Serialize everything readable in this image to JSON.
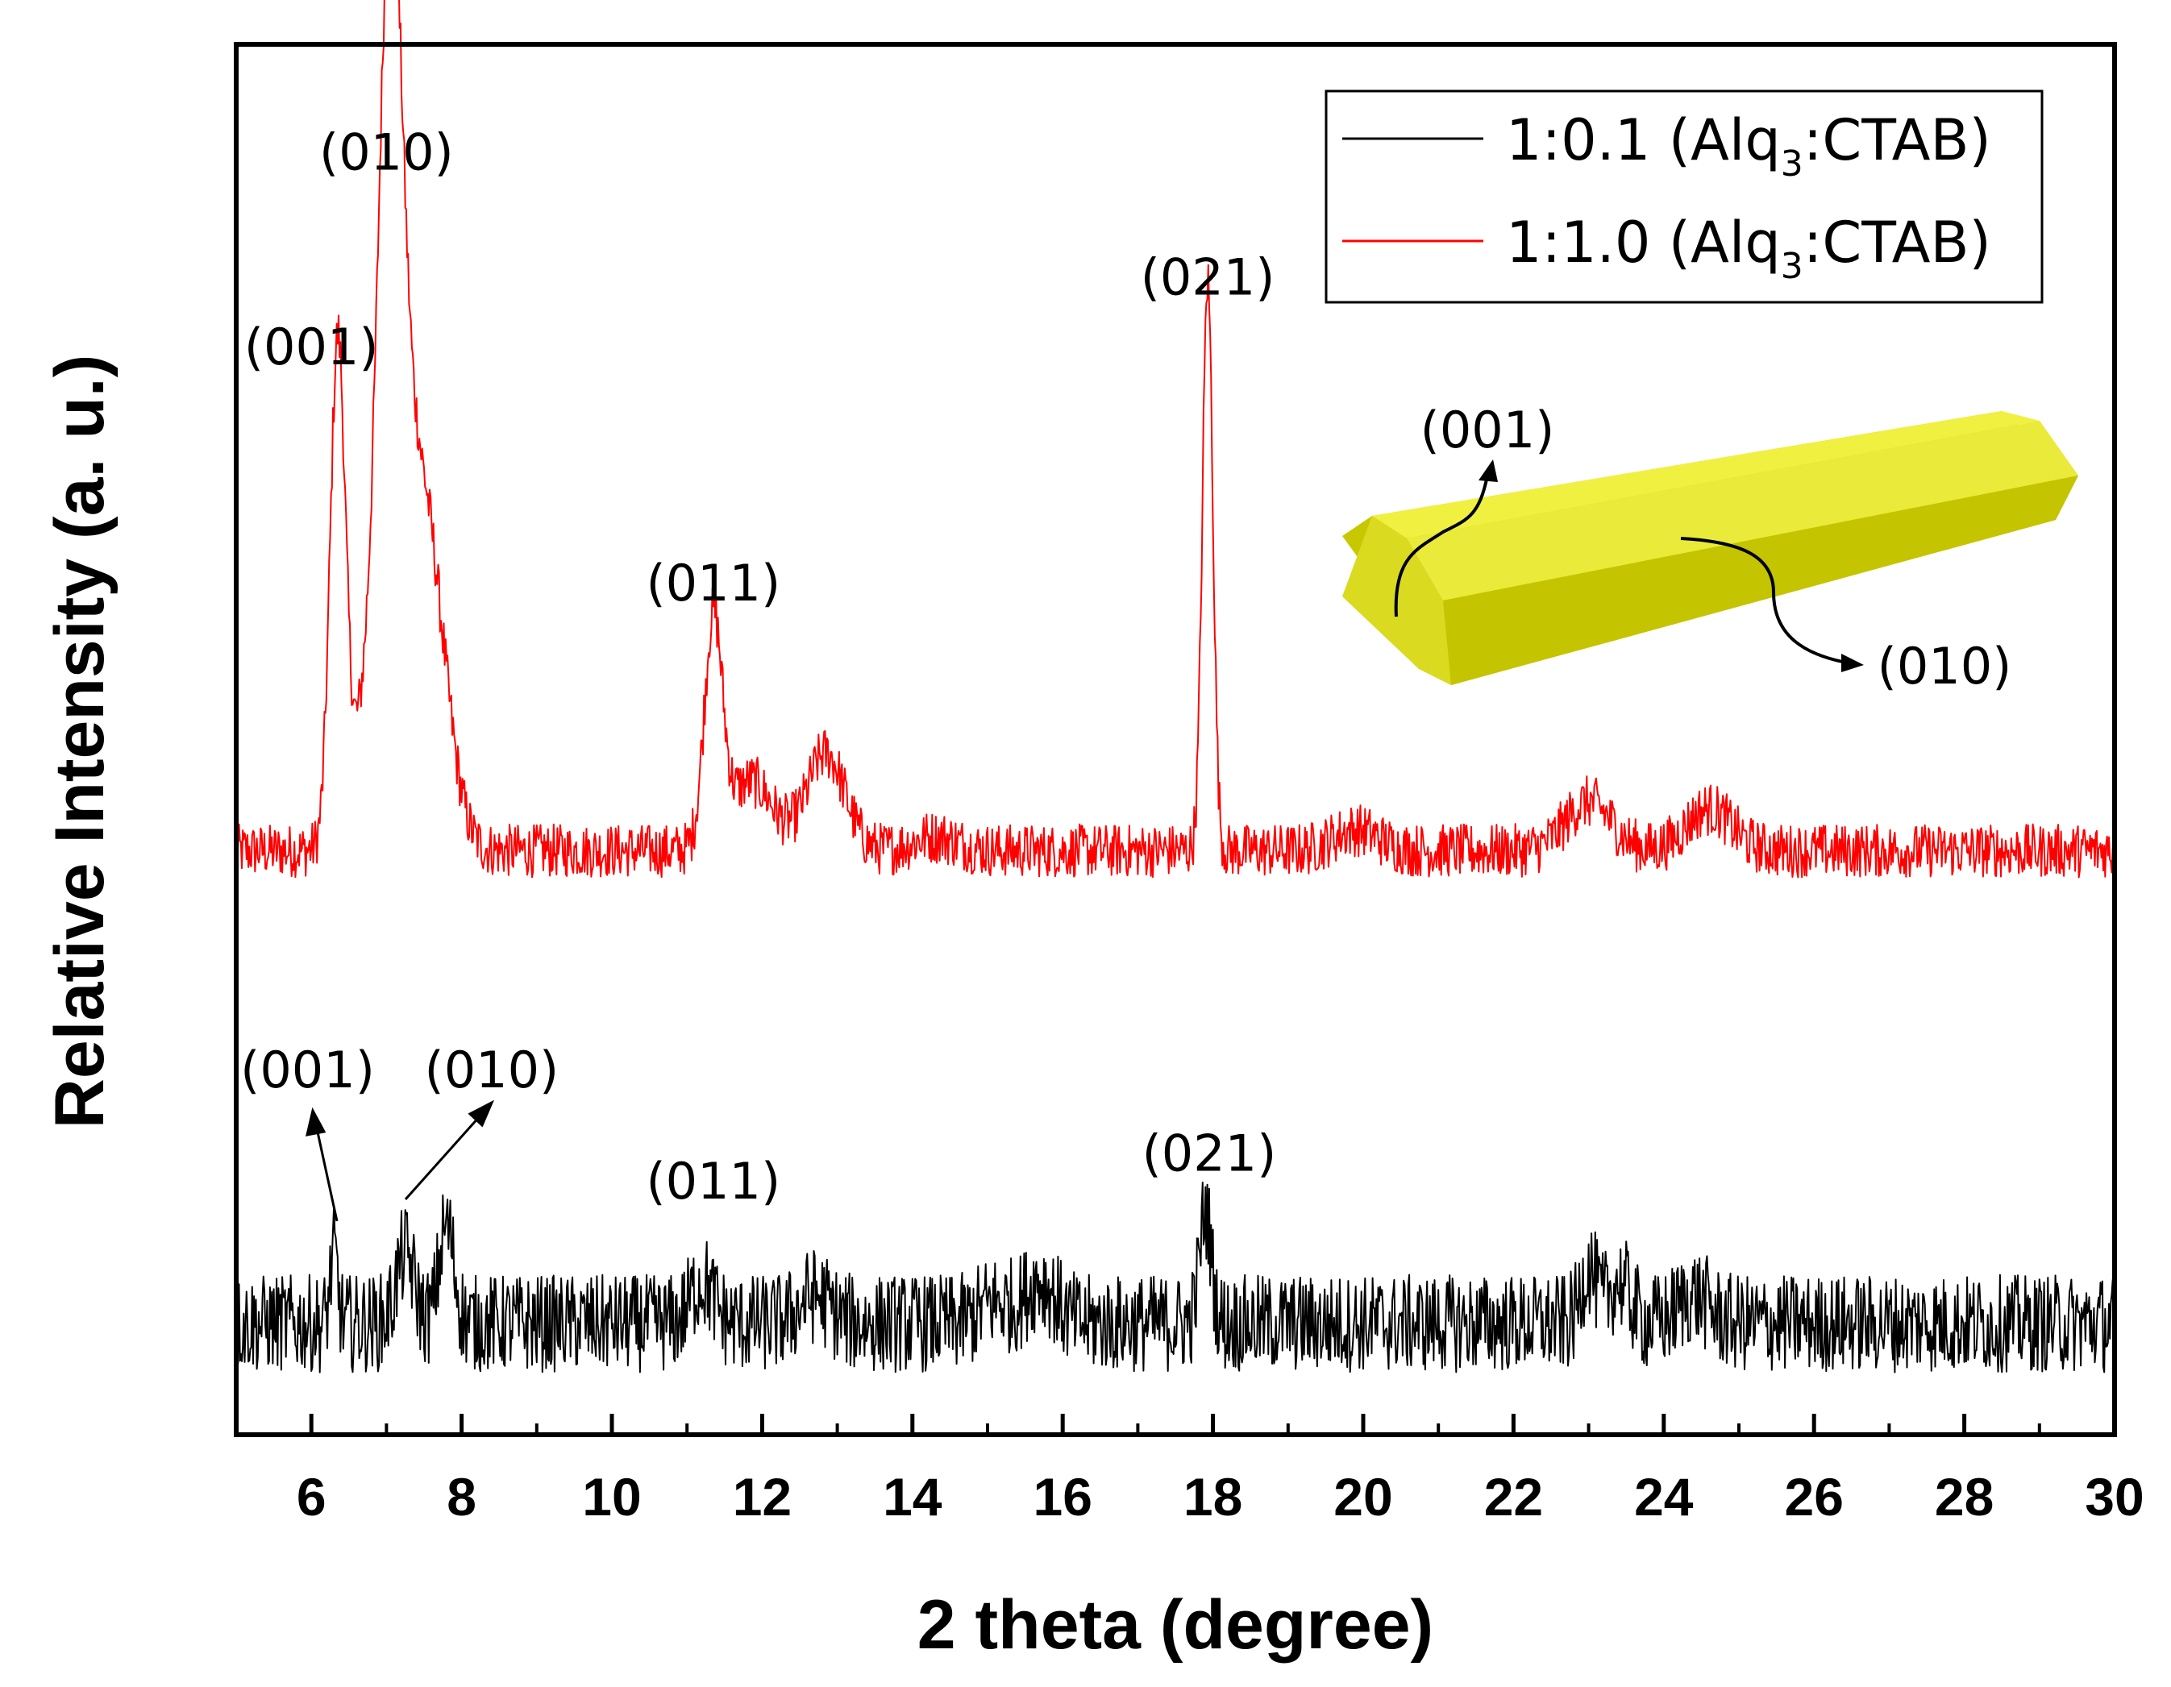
{
  "chart_data": {
    "type": "line",
    "xlabel": "2 theta (degree)",
    "ylabel": "Relative Intensity (a. u.)",
    "xlim": [
      5,
      30
    ],
    "xticks": [
      "6",
      "8",
      "10",
      "12",
      "14",
      "16",
      "18",
      "20",
      "22",
      "24",
      "26",
      "28",
      "30"
    ],
    "ylim": [
      0,
      100
    ],
    "yticks_shown": false,
    "legend": {
      "position": "top-right",
      "entries": [
        {
          "prefix": "1:0.1 (Alq",
          "sub": "3",
          "suffix": ":CTAB)",
          "color": "#000000"
        },
        {
          "prefix": "1:1.0 (Alq",
          "sub": "3",
          "suffix": ":CTAB)",
          "color": "#ff0000"
        }
      ]
    },
    "series": [
      {
        "name": "1:1.0 (Alq3:CTAB)",
        "color": "#ff0000",
        "baseline": 42,
        "noise": 1.2,
        "peaks": [
          {
            "x": 6.35,
            "height": 35,
            "width": 0.1
          },
          {
            "x": 6.75,
            "height": 7,
            "width": 0.25
          },
          {
            "x": 7.05,
            "height": 48,
            "width": 0.15
          },
          {
            "x": 7.25,
            "height": 22,
            "width": 0.3
          },
          {
            "x": 7.6,
            "height": 12,
            "width": 0.25
          },
          {
            "x": 11.35,
            "height": 16,
            "width": 0.12
          },
          {
            "x": 11.85,
            "height": 5,
            "width": 0.3
          },
          {
            "x": 12.85,
            "height": 7,
            "width": 0.25
          },
          {
            "x": 14.3,
            "height": 1,
            "width": 0.3
          },
          {
            "x": 17.93,
            "height": 41,
            "width": 0.07
          },
          {
            "x": 19.9,
            "height": 1.5,
            "width": 0.3
          },
          {
            "x": 23.0,
            "height": 3.5,
            "width": 0.3
          },
          {
            "x": 24.6,
            "height": 3,
            "width": 0.3
          }
        ]
      },
      {
        "name": "1:0.1 (Alq3:CTAB)",
        "color": "#000000",
        "baseline": 8,
        "noise": 2.2,
        "peaks": [
          {
            "x": 6.3,
            "height": 5,
            "width": 0.05
          },
          {
            "x": 7.25,
            "height": 5,
            "width": 0.12
          },
          {
            "x": 7.8,
            "height": 7,
            "width": 0.1
          },
          {
            "x": 11.2,
            "height": 3,
            "width": 0.15
          },
          {
            "x": 12.7,
            "height": 2,
            "width": 0.2
          },
          {
            "x": 15.1,
            "height": 1.5,
            "width": 0.2
          },
          {
            "x": 15.7,
            "height": 3,
            "width": 0.2
          },
          {
            "x": 17.9,
            "height": 8,
            "width": 0.08
          },
          {
            "x": 23.0,
            "height": 4,
            "width": 0.1
          },
          {
            "x": 23.4,
            "height": 3,
            "width": 0.15
          },
          {
            "x": 24.4,
            "height": 2,
            "width": 0.2
          }
        ]
      }
    ],
    "annotations": [
      {
        "text": "(001)",
        "x": 6.0,
        "y": 77
      },
      {
        "text": "(010)",
        "x": 7.0,
        "y": 91
      },
      {
        "text": "(011)",
        "x": 11.35,
        "y": 60
      },
      {
        "text": "(021)",
        "x": 17.93,
        "y": 82
      },
      {
        "text": "(001)",
        "x": 5.95,
        "y": 25
      },
      {
        "text": "(010)",
        "x": 8.4,
        "y": 25
      },
      {
        "text": "(011)",
        "x": 11.35,
        "y": 17
      },
      {
        "text": "(021)",
        "x": 17.95,
        "y": 19
      }
    ],
    "inset": {
      "description_labels": [
        "(001)",
        "(010)"
      ]
    }
  }
}
